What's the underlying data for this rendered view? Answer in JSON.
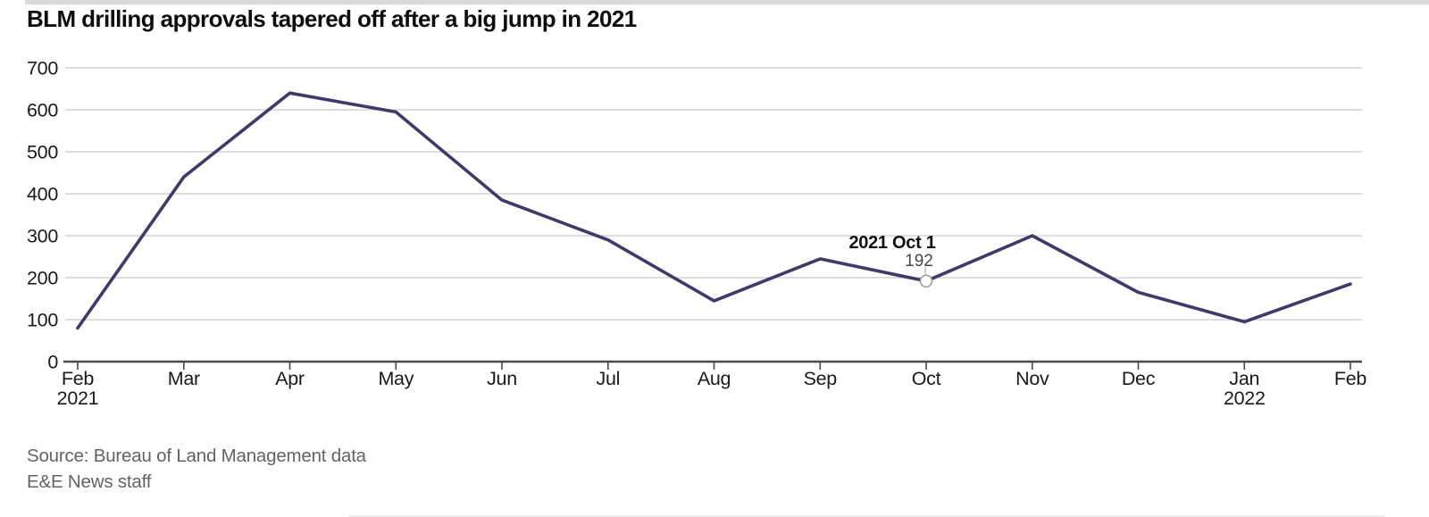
{
  "header": {
    "title": "BLM drilling approvals tapered off after a big jump in 2021"
  },
  "footer": {
    "source_line": "Source: Bureau of Land Management data",
    "credit_line": "E&E News staff"
  },
  "colors": {
    "line": "#3e3a6a",
    "grid": "#cbcbcb",
    "axis": "#4a4a4a",
    "tick_text": "#1a1a1a",
    "muted_text": "#636363",
    "marker_stroke": "#999999",
    "connector": "#aaaaaa"
  },
  "chart_data": {
    "type": "line",
    "title": "BLM drilling approvals tapered off after a big jump in 2021",
    "x_tick_labels": [
      {
        "label": "Feb",
        "sub": "2021"
      },
      {
        "label": "Mar"
      },
      {
        "label": "Apr"
      },
      {
        "label": "May"
      },
      {
        "label": "Jun"
      },
      {
        "label": "Jul"
      },
      {
        "label": "Aug"
      },
      {
        "label": "Sep"
      },
      {
        "label": "Oct"
      },
      {
        "label": "Nov"
      },
      {
        "label": "Dec"
      },
      {
        "label": "Jan",
        "sub": "2022"
      },
      {
        "label": "Feb"
      }
    ],
    "values": [
      80,
      440,
      640,
      595,
      385,
      290,
      145,
      245,
      192,
      300,
      165,
      95,
      185
    ],
    "ylim": [
      0,
      700
    ],
    "yticks": [
      0,
      100,
      200,
      300,
      400,
      500,
      600,
      700
    ],
    "grid": "horizontal",
    "legend": "none",
    "xlabel": "",
    "ylabel": "",
    "annotation": {
      "x_index": 8,
      "label": "2021 Oct 1",
      "value_label": "192"
    }
  }
}
